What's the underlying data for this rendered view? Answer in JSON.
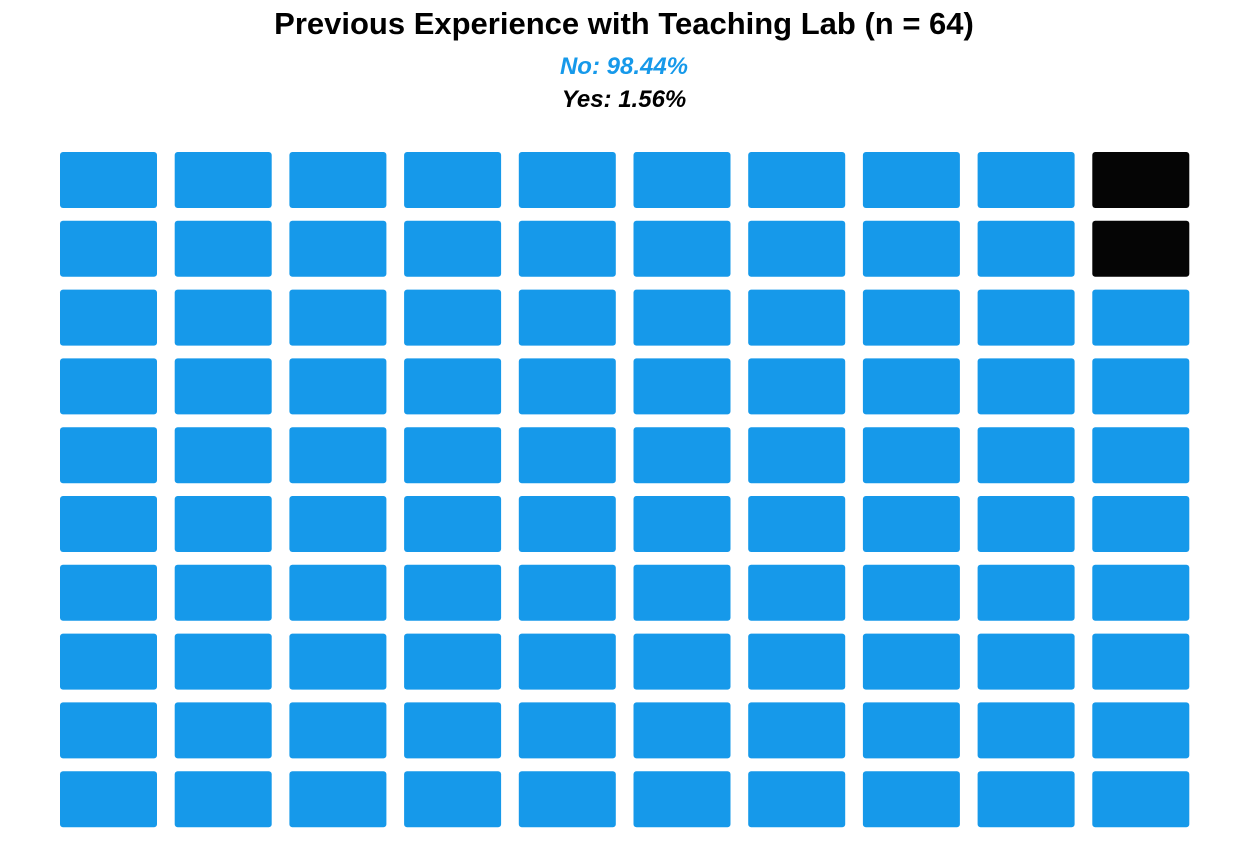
{
  "chart_data": {
    "type": "waffle",
    "title": "Previous Experience with Teaching Lab (n = 64)",
    "n": 64,
    "grid": {
      "rows": 10,
      "cols": 10
    },
    "series": [
      {
        "name": "No",
        "label": "No: 98.44%",
        "percent": 98.44,
        "cells": 98,
        "color": "#1699EA"
      },
      {
        "name": "Yes",
        "label": "Yes: 1.56%",
        "percent": 1.56,
        "cells": 2,
        "color": "#050505"
      }
    ],
    "legend": "top-center"
  }
}
